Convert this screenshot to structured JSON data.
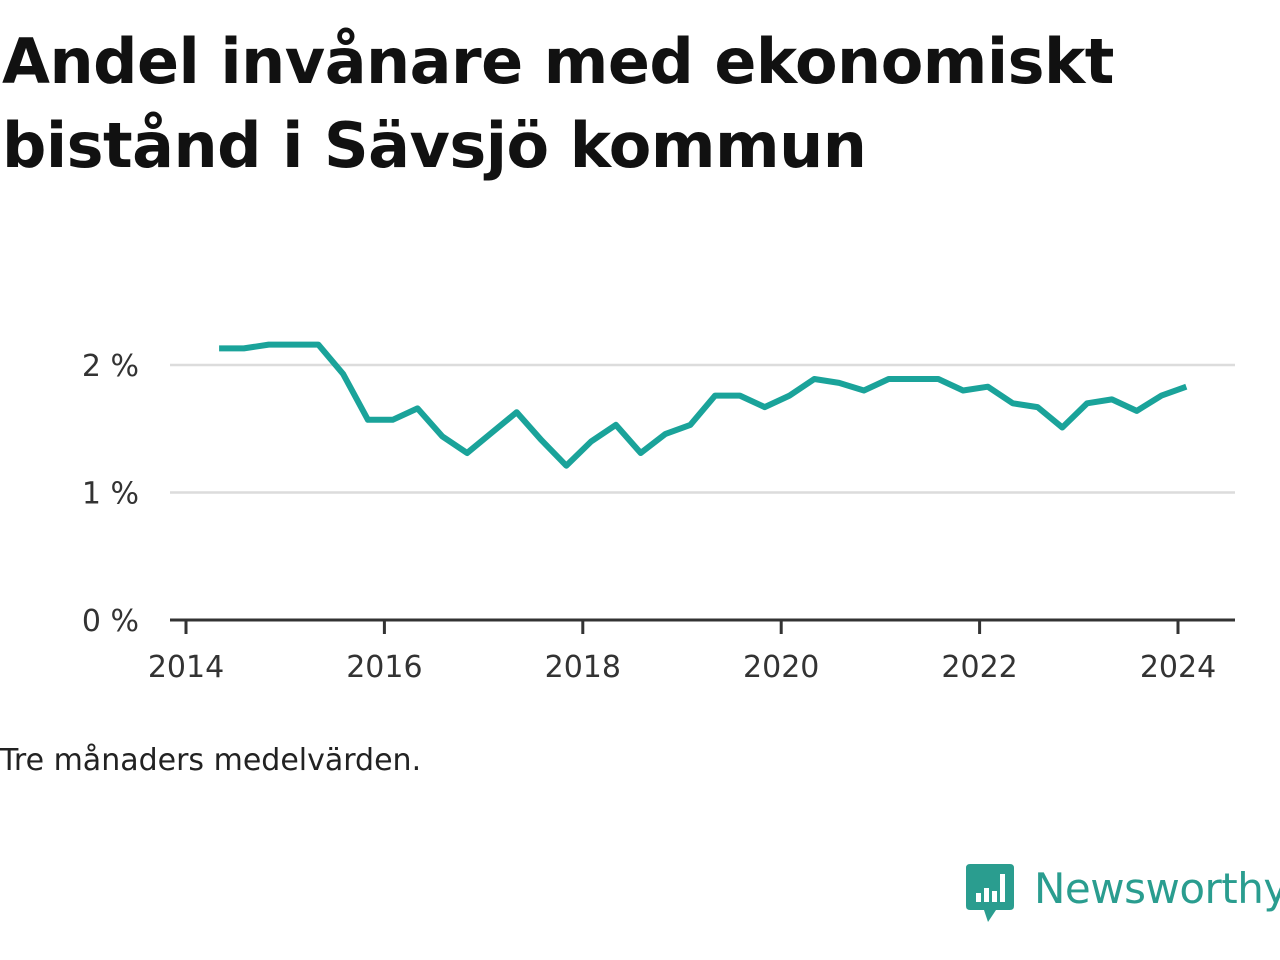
{
  "title": "Andel invånare med ekonomiskt bistånd i Sävsjö kommun",
  "note": "Tre månaders medelvärden.",
  "brand": {
    "name": "Newsworthy",
    "icon": "newsworthy-logo-icon",
    "color": "#2a9d8f"
  },
  "chart_data": {
    "type": "line",
    "title": "Andel invånare med ekonomiskt bistånd i Sävsjö kommun",
    "xlabel": "",
    "ylabel": "",
    "x_ticks": [
      "2014",
      "2016",
      "2018",
      "2020",
      "2022",
      "2024"
    ],
    "y_ticks": [
      "0 %",
      "1 %",
      "2 %"
    ],
    "ylim": [
      0,
      2.2
    ],
    "xlim": [
      "2014-01",
      "2024-07"
    ],
    "grid": true,
    "line_color": "#1aa39a",
    "series": [
      {
        "x": [
          "2014-05",
          "2014-08",
          "2014-11",
          "2015-02",
          "2015-05",
          "2015-08",
          "2015-11",
          "2016-02",
          "2016-05",
          "2016-08",
          "2016-11",
          "2017-02",
          "2017-05",
          "2017-08",
          "2017-11",
          "2018-02",
          "2018-05",
          "2018-08",
          "2018-11",
          "2019-02",
          "2019-05",
          "2019-08",
          "2019-11",
          "2020-02",
          "2020-05",
          "2020-08",
          "2020-11",
          "2021-02",
          "2021-05",
          "2021-08",
          "2021-11",
          "2022-02",
          "2022-05",
          "2022-08",
          "2022-11",
          "2023-02",
          "2023-05",
          "2023-08",
          "2023-11",
          "2024-02"
        ],
        "values": [
          2.13,
          2.13,
          2.16,
          2.16,
          2.16,
          1.93,
          1.57,
          1.57,
          1.66,
          1.44,
          1.31,
          1.47,
          1.63,
          1.41,
          1.21,
          1.4,
          1.53,
          1.31,
          1.46,
          1.53,
          1.76,
          1.76,
          1.67,
          1.76,
          1.89,
          1.86,
          1.8,
          1.89,
          1.89,
          1.89,
          1.8,
          1.83,
          1.7,
          1.67,
          1.51,
          1.7,
          1.73,
          1.64,
          1.76,
          1.83
        ]
      }
    ]
  }
}
